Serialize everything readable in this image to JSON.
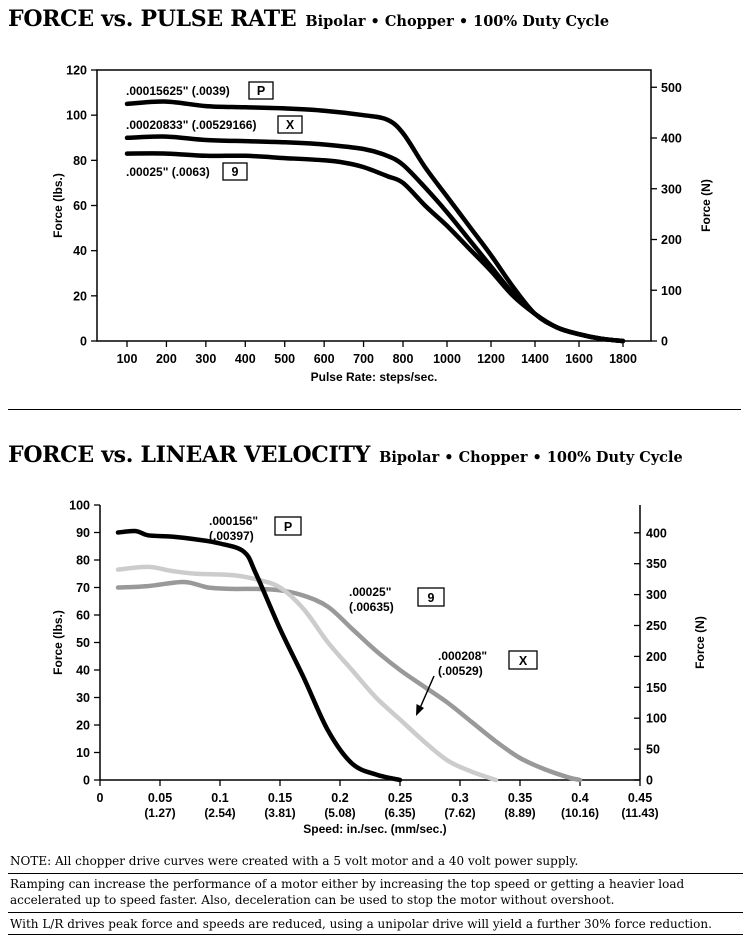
{
  "titles": {
    "chart1_main": "FORCE vs. PULSE RATE",
    "chart1_sub": "Bipolar • Chopper • 100% Duty Cycle",
    "chart2_main": "FORCE vs. LINEAR VELOCITY",
    "chart2_sub": "Bipolar • Chopper • 100% Duty Cycle"
  },
  "notes": {
    "note1": "NOTE: All chopper drive curves were created with a 5 volt motor and a 40 volt power supply.",
    "note2": "Ramping can increase the performance of a motor either by increasing the top speed or getting a heavier load accelerated up to speed faster.  Also, deceleration can be used to stop the motor without overshoot.",
    "note3": "With L/R drives peak force and speeds are reduced, using a unipolar drive will yield a further 30% force reduction."
  },
  "colors": {
    "black": "#000000",
    "gray": "#999999",
    "lightgray": "#cccccc"
  },
  "chart_data": [
    {
      "type": "line",
      "xlabel": "Pulse Rate:  steps/sec.",
      "ylabel": "Force (lbs.)",
      "y2label": "Force (N)",
      "xlim": [
        50,
        1850
      ],
      "ylim": [
        0,
        120
      ],
      "y2lim": [
        0,
        534
      ],
      "xticks": [
        100,
        200,
        300,
        400,
        500,
        600,
        700,
        800,
        1000,
        1200,
        1400,
        1600,
        1800
      ],
      "xtick_labels": [
        "100",
        "200",
        "300",
        "400",
        "500",
        "600",
        "700",
        "800",
        "1000",
        "1200",
        "1400",
        "1600",
        "1800"
      ],
      "yticks": [
        0,
        20,
        40,
        60,
        80,
        100,
        120
      ],
      "y2ticks": [
        0,
        100,
        200,
        300,
        400,
        500
      ],
      "grid": false,
      "series": [
        {
          "label_text": ".00015625\" (.0039)",
          "box": "P",
          "color": "#000000",
          "points": [
            [
              100,
              105
            ],
            [
              200,
              106
            ],
            [
              300,
              104
            ],
            [
              400,
              103.5
            ],
            [
              500,
              103
            ],
            [
              600,
              102
            ],
            [
              700,
              100
            ],
            [
              760,
              98
            ],
            [
              800,
              92
            ],
            [
              900,
              77
            ],
            [
              1000,
              64
            ],
            [
              1100,
              51
            ],
            [
              1200,
              38
            ],
            [
              1300,
              24
            ],
            [
              1400,
              12
            ],
            [
              1500,
              6
            ],
            [
              1600,
              3
            ],
            [
              1700,
              1
            ],
            [
              1800,
              0
            ]
          ]
        },
        {
          "label_text": ".00020833\" (.00529166)",
          "box": "X",
          "color": "#000000",
          "points": [
            [
              100,
              90
            ],
            [
              200,
              90.5
            ],
            [
              300,
              89
            ],
            [
              400,
              88.5
            ],
            [
              500,
              88
            ],
            [
              600,
              87
            ],
            [
              700,
              85
            ],
            [
              760,
              82
            ],
            [
              800,
              78
            ],
            [
              900,
              68
            ],
            [
              1000,
              57
            ],
            [
              1100,
              45
            ],
            [
              1200,
              33
            ],
            [
              1300,
              21
            ],
            [
              1400,
              12
            ],
            [
              1500,
              6
            ],
            [
              1600,
              3
            ],
            [
              1700,
              1
            ],
            [
              1800,
              0
            ]
          ]
        },
        {
          "label_text": ".00025\" (.0063)",
          "box": "9",
          "color": "#000000",
          "points": [
            [
              100,
              83
            ],
            [
              200,
              83
            ],
            [
              300,
              82
            ],
            [
              400,
              82
            ],
            [
              500,
              81
            ],
            [
              600,
              80
            ],
            [
              650,
              79
            ],
            [
              700,
              77
            ],
            [
              760,
              73
            ],
            [
              800,
              70
            ],
            [
              900,
              60
            ],
            [
              1000,
              51
            ],
            [
              1100,
              41
            ],
            [
              1200,
              31
            ],
            [
              1300,
              20
            ],
            [
              1400,
              12
            ],
            [
              1500,
              6
            ],
            [
              1600,
              3
            ],
            [
              1700,
              1
            ],
            [
              1800,
              0
            ]
          ]
        }
      ]
    },
    {
      "type": "line",
      "xlabel": "Speed:  in./sec. (mm/sec.)",
      "ylabel": "Force (lbs.)",
      "y2label": "Force (N)",
      "xlim": [
        0,
        0.45
      ],
      "ylim": [
        0,
        100
      ],
      "y2lim": [
        0,
        445
      ],
      "xticks": [
        0,
        0.05,
        0.1,
        0.15,
        0.2,
        0.25,
        0.3,
        0.35,
        0.4,
        0.45
      ],
      "xtick_labels": [
        "0",
        "0.05",
        "0.1",
        "0.15",
        "0.2",
        "0.25",
        "0.3",
        "0.35",
        "0.4",
        "0.45"
      ],
      "xtick_sublabels": [
        "",
        "(1.27)",
        "(2.54)",
        "(3.81)",
        "(5.08)",
        "(6.35)",
        "(7.62)",
        "(8.89)",
        "(10.16)",
        "(11.43)"
      ],
      "yticks": [
        0,
        10,
        20,
        30,
        40,
        50,
        60,
        70,
        80,
        90,
        100
      ],
      "y2ticks": [
        0,
        50,
        100,
        150,
        200,
        250,
        300,
        350,
        400
      ],
      "grid": false,
      "series": [
        {
          "label_line1": ".000156\"",
          "label_line2": "(.00397)",
          "box": "P",
          "color": "#000000",
          "points": [
            [
              0.015,
              90
            ],
            [
              0.03,
              90.5
            ],
            [
              0.04,
              89
            ],
            [
              0.06,
              88.5
            ],
            [
              0.08,
              87.5
            ],
            [
              0.1,
              86
            ],
            [
              0.12,
              83
            ],
            [
              0.13,
              75
            ],
            [
              0.15,
              55
            ],
            [
              0.17,
              37
            ],
            [
              0.19,
              18
            ],
            [
              0.21,
              6
            ],
            [
              0.23,
              2
            ],
            [
              0.25,
              0
            ]
          ]
        },
        {
          "label_line1": ".00025\"",
          "label_line2": "(.00635)",
          "box": "9",
          "color": "#999999",
          "points": [
            [
              0.015,
              70
            ],
            [
              0.04,
              70.5
            ],
            [
              0.07,
              72
            ],
            [
              0.09,
              70
            ],
            [
              0.11,
              69.5
            ],
            [
              0.13,
              69.5
            ],
            [
              0.15,
              69
            ],
            [
              0.17,
              67
            ],
            [
              0.19,
              63
            ],
            [
              0.21,
              55
            ],
            [
              0.23,
              47
            ],
            [
              0.25,
              40
            ],
            [
              0.27,
              34
            ],
            [
              0.29,
              28
            ],
            [
              0.31,
              21
            ],
            [
              0.33,
              14
            ],
            [
              0.35,
              8
            ],
            [
              0.37,
              4
            ],
            [
              0.39,
              1
            ],
            [
              0.4,
              0
            ]
          ]
        },
        {
          "label_line1": ".000208\"",
          "label_line2": "(.00529)",
          "box": "X",
          "color": "#cccccc",
          "points": [
            [
              0.015,
              76.5
            ],
            [
              0.04,
              77.5
            ],
            [
              0.06,
              76
            ],
            [
              0.08,
              75
            ],
            [
              0.11,
              74.5
            ],
            [
              0.13,
              73
            ],
            [
              0.15,
              70
            ],
            [
              0.17,
              62
            ],
            [
              0.19,
              50
            ],
            [
              0.21,
              40
            ],
            [
              0.23,
              30
            ],
            [
              0.25,
              22
            ],
            [
              0.27,
              14
            ],
            [
              0.29,
              7
            ],
            [
              0.31,
              3
            ],
            [
              0.33,
              0
            ]
          ]
        }
      ]
    }
  ]
}
